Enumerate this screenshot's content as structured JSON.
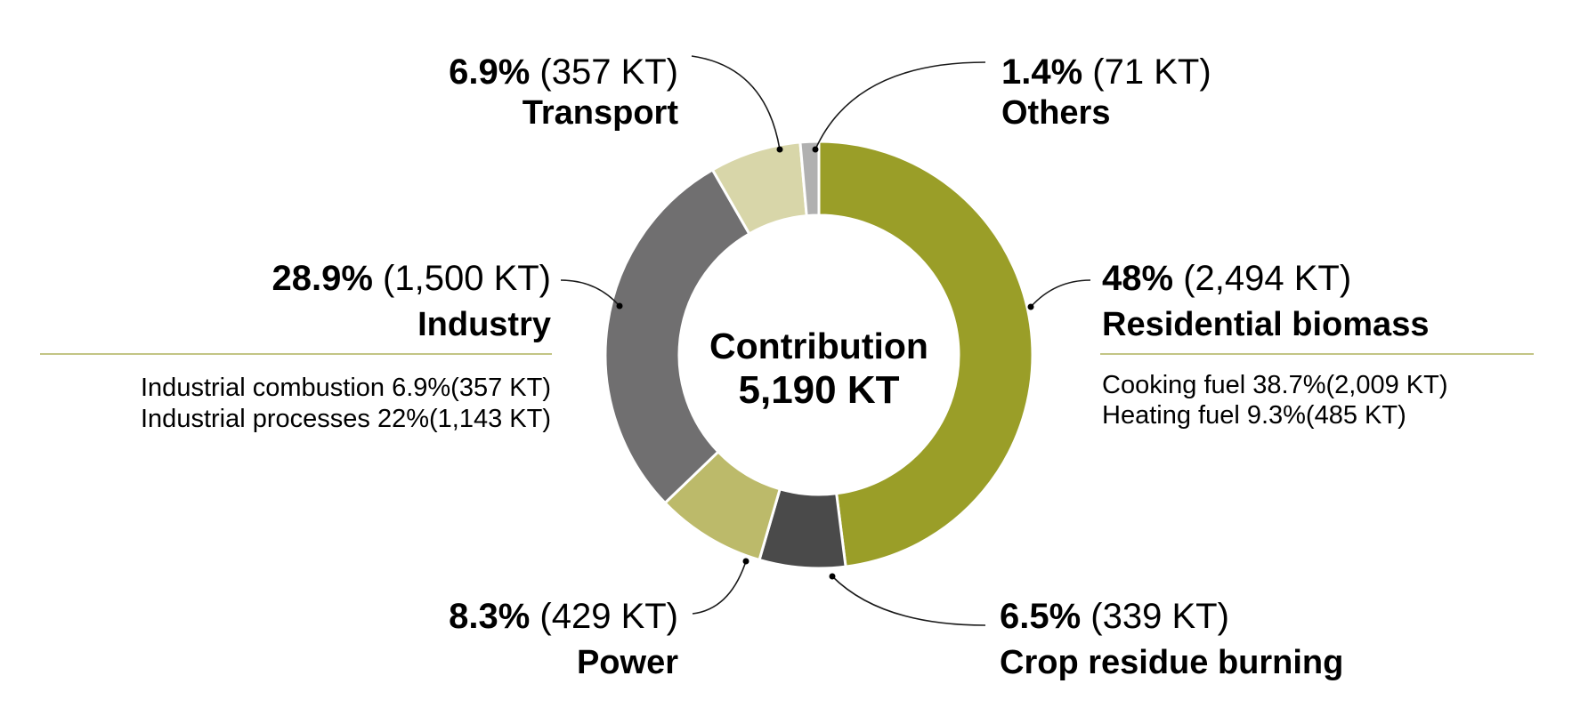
{
  "chart_data": {
    "type": "pie",
    "variant": "donut",
    "title": "",
    "center_label": "Contribution",
    "center_value": "5,190 KT",
    "total_kt": 5190,
    "unit": "KT",
    "slices": [
      {
        "name": "Residential biomass",
        "percent": 48.0,
        "percent_label": "48%",
        "value": 2494,
        "value_label": "(2,494 KT)",
        "color": "#9a9e28",
        "breakdown": [
          {
            "label": "Cooking fuel 38.7%(2,009 KT)",
            "name": "Cooking fuel",
            "percent": 38.7,
            "value": 2009
          },
          {
            "label": "Heating fuel 9.3%(485 KT)",
            "name": "Heating fuel",
            "percent": 9.3,
            "value": 485
          }
        ]
      },
      {
        "name": "Crop residue burning",
        "percent": 6.5,
        "percent_label": "6.5%",
        "value": 339,
        "value_label": "(339 KT)",
        "color": "#4a4a4a",
        "breakdown": []
      },
      {
        "name": "Power",
        "percent": 8.3,
        "percent_label": "8.3%",
        "value": 429,
        "value_label": "(429 KT)",
        "color": "#bcba6a",
        "breakdown": []
      },
      {
        "name": "Industry",
        "percent": 28.9,
        "percent_label": "28.9%",
        "value": 1500,
        "value_label": "(1,500 KT)",
        "color": "#706f70",
        "breakdown": [
          {
            "label": "Industrial combustion 6.9%(357 KT)",
            "name": "Industrial combustion",
            "percent": 6.9,
            "value": 357
          },
          {
            "label": "Industrial processes 22%(1,143 KT)",
            "name": "Industrial processes",
            "percent": 22,
            "value": 1143
          }
        ]
      },
      {
        "name": "Transport",
        "percent": 6.9,
        "percent_label": "6.9%",
        "value": 357,
        "value_label": "(357 KT)",
        "color": "#d8d6a9",
        "breakdown": []
      },
      {
        "name": "Others",
        "percent": 1.4,
        "percent_label": "1.4%",
        "value": 71,
        "value_label": "(71 KT)",
        "color": "#b0b0b0",
        "breakdown": []
      }
    ],
    "divider_color": "#c3c585",
    "legend": "none (direct labels)"
  }
}
